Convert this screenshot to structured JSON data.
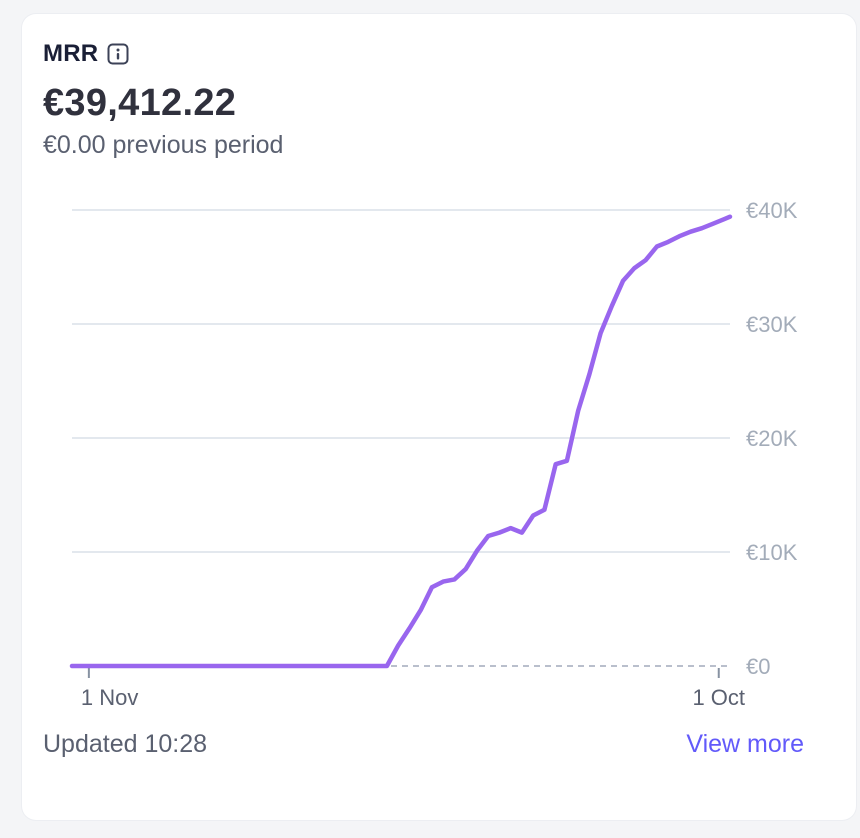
{
  "card": {
    "title": "MRR",
    "value": "€39,412.22",
    "previous": "€0.00 previous period",
    "updated": "Updated 10:28",
    "view_more": "View more"
  },
  "colors": {
    "line": "#9966ee",
    "grid": "#e3e8ee",
    "baseline_dash": "#b9bfcc",
    "link": "#625afa"
  },
  "chart_data": {
    "type": "line",
    "title": "MRR",
    "y_unit": "€",
    "ylim": [
      0,
      40000
    ],
    "y_ticks": [
      0,
      10000,
      20000,
      30000,
      40000
    ],
    "y_tick_labels": [
      "€0",
      "€10K",
      "€20K",
      "€30K",
      "€40K"
    ],
    "x_tick_labels": [
      "1 Nov",
      "1 Oct"
    ],
    "x_ticks": [
      0.3,
      11.5
    ],
    "x_range": [
      0,
      11.7
    ],
    "grid": true,
    "series": [
      {
        "name": "MRR",
        "x": [
          0,
          5.6,
          5.8,
          6.0,
          6.2,
          6.4,
          6.6,
          6.8,
          7.0,
          7.2,
          7.4,
          7.6,
          7.8,
          8.0,
          8.2,
          8.4,
          8.6,
          8.8,
          9.0,
          9.2,
          9.4,
          9.6,
          9.8,
          10.0,
          10.2,
          10.4,
          10.6,
          10.8,
          11.0,
          11.2,
          11.4,
          11.6,
          11.7
        ],
        "values": [
          0,
          0,
          1800,
          3300,
          4900,
          6900,
          7400,
          7600,
          8500,
          10100,
          11400,
          11700,
          12100,
          11700,
          13200,
          13700,
          17700,
          18000,
          22400,
          25600,
          29200,
          31600,
          33800,
          34900,
          35600,
          36800,
          37200,
          37700,
          38100,
          38400,
          38800,
          39200,
          39412
        ]
      }
    ]
  }
}
